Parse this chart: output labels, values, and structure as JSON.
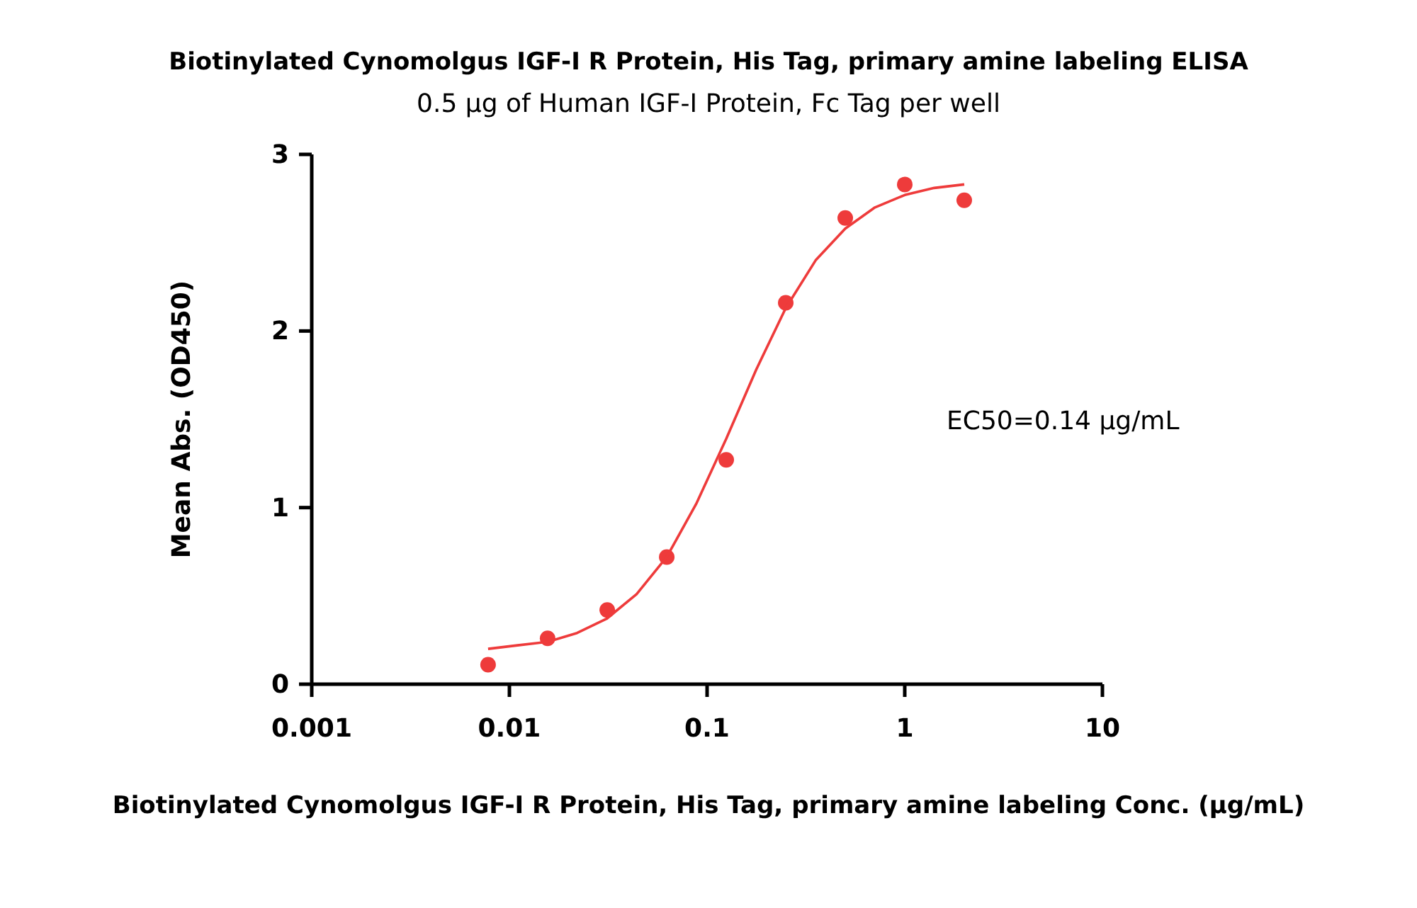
{
  "chart_data": {
    "type": "scatter",
    "title": "Biotinylated Cynomolgus IGF-I R Protein, His Tag, primary amine labeling ELISA",
    "subtitle": "0.5 µg of Human IGF-I Protein, Fc Tag per well",
    "xlabel": "Biotinylated Cynomolgus IGF-I R Protein, His Tag, primary amine labeling Conc. (µg/mL)",
    "ylabel": "Mean Abs. (OD450)",
    "annotations": [
      "EC50=0.14 µg/mL"
    ],
    "log": "x",
    "xlim": [
      0.001,
      10
    ],
    "xticks": [
      0.001,
      0.01,
      0.1,
      1,
      10
    ],
    "ylim": [
      0,
      3
    ],
    "yticks": [
      0,
      1,
      2,
      3
    ],
    "grid": false,
    "marker": "circle",
    "x": [
      0.0078,
      0.0156,
      0.03125,
      0.0625,
      0.125,
      0.25,
      0.5,
      1,
      2
    ],
    "series": [
      {
        "color": "#ee3b3b",
        "values": [
          0.11,
          0.26,
          0.42,
          0.72,
          1.27,
          2.16,
          2.64,
          2.83,
          2.74
        ]
      },
      {
        "type": "line",
        "color": "#ee3b3b",
        "marker": "none",
        "line_style": "solid",
        "x": [
          0.0078,
          0.011,
          0.0156,
          0.022,
          0.031,
          0.044,
          0.0625,
          0.088,
          0.125,
          0.177,
          0.25,
          0.354,
          0.5,
          0.707,
          1,
          1.41,
          2
        ],
        "values": [
          0.2,
          0.22,
          0.24,
          0.29,
          0.37,
          0.51,
          0.72,
          1.02,
          1.39,
          1.78,
          2.13,
          2.4,
          2.58,
          2.7,
          2.77,
          2.81,
          2.83
        ]
      }
    ]
  }
}
